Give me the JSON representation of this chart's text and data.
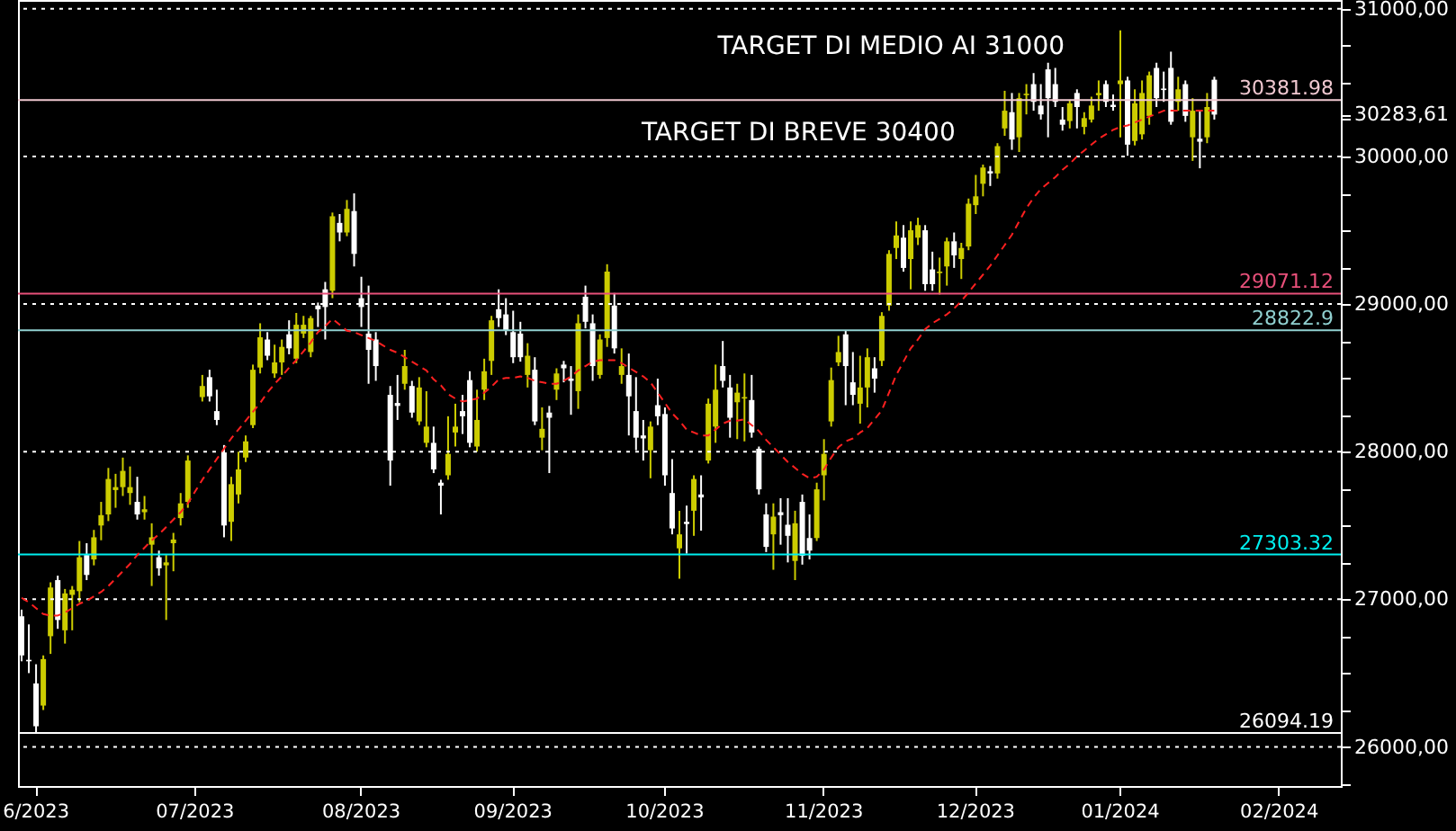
{
  "chart_data": {
    "type": "candlestick",
    "categories": [
      null,
      null,
      "6/2023",
      null,
      null,
      null,
      null,
      null,
      null,
      null,
      null,
      null,
      null,
      null,
      null,
      null,
      null,
      null,
      null,
      null,
      null,
      null,
      null,
      null,
      "07/2023",
      null,
      null,
      null,
      null,
      null,
      null,
      null,
      null,
      null,
      null,
      null,
      null,
      null,
      null,
      null,
      null,
      null,
      null,
      null,
      null,
      null,
      null,
      "08/2023",
      null,
      null,
      null,
      null,
      null,
      null,
      null,
      null,
      null,
      null,
      null,
      null,
      null,
      null,
      null,
      null,
      null,
      null,
      null,
      null,
      "09/2023",
      null,
      null,
      null,
      null,
      null,
      null,
      null,
      null,
      null,
      null,
      null,
      null,
      null,
      null,
      null,
      null,
      null,
      null,
      null,
      null,
      "10/2023",
      null,
      null,
      null,
      null,
      null,
      null,
      null,
      null,
      null,
      null,
      null,
      null,
      null,
      null,
      null,
      null,
      null,
      null,
      null,
      null,
      null,
      "11/2023",
      null,
      null,
      null,
      null,
      null,
      null,
      null,
      null,
      null,
      null,
      null,
      null,
      null,
      null,
      null,
      null,
      null,
      null,
      null,
      null,
      "12/2023",
      null,
      null,
      null,
      null,
      null,
      null,
      null,
      null,
      null,
      null,
      null,
      null,
      null,
      null,
      null,
      null,
      null,
      null,
      null,
      "01/2024",
      null,
      null,
      null,
      null,
      null,
      null,
      null,
      null,
      null,
      null,
      null,
      null,
      null,
      null,
      null,
      null,
      null,
      null,
      null,
      null,
      null,
      "02/2024",
      null,
      null,
      null,
      null,
      null,
      null,
      null,
      null
    ],
    "colors": [
      "#ffffff",
      "#ffffff",
      "#ffffff",
      "#cccc00",
      "#cccc00",
      "#ffffff",
      "#cccc00",
      "#cccc00",
      "#cccc00",
      "#ffffff",
      "#cccc00",
      "#cccc00",
      "#cccc00",
      "#cccc00",
      "#cccc00",
      "#cccc00",
      "#ffffff",
      "#cccc00",
      "#cccc00",
      "#ffffff",
      "#cccc00",
      "#cccc00",
      "#cccc00",
      "#cccc00",
      null,
      "#cccc00",
      "#ffffff",
      "#ffffff",
      "#ffffff",
      "#cccc00",
      "#cccc00",
      "#cccc00",
      "#cccc00",
      "#cccc00",
      "#ffffff",
      "#cccc00",
      "#cccc00",
      "#ffffff",
      "#cccc00",
      "#cccc00",
      "#cccc00",
      "#ffffff",
      "#ffffff",
      "#cccc00",
      "#ffffff",
      "#cccc00",
      "#ffffff",
      "#ffffff",
      "#ffffff",
      "#ffffff",
      null,
      "#ffffff",
      "#ffffff",
      "#cccc00",
      "#ffffff",
      "#cccc00",
      "#cccc00",
      "#ffffff",
      "#ffffff",
      "#cccc00",
      "#cccc00",
      "#ffffff",
      "#ffffff",
      "#cccc00",
      "#cccc00",
      "#cccc00",
      "#ffffff",
      "#ffffff",
      "#ffffff",
      "#ffffff",
      "#cccc00",
      "#ffffff",
      "#cccc00",
      "#ffffff",
      "#cccc00",
      "#ffffff",
      "#ffffff",
      "#cccc00",
      "#ffffff",
      "#ffffff",
      "#cccc00",
      "#cccc00",
      "#ffffff",
      "#cccc00",
      "#ffffff",
      "#ffffff",
      "#ffffff",
      "#cccc00",
      "#ffffff",
      "#ffffff",
      "#ffffff",
      "#cccc00",
      "#ffffff",
      "#cccc00",
      "#ffffff",
      "#cccc00",
      "#cccc00",
      "#ffffff",
      "#ffffff",
      "#cccc00",
      "#cccc00",
      "#ffffff",
      "#ffffff",
      "#ffffff",
      "#cccc00",
      "#ffffff",
      "#ffffff",
      "#cccc00",
      "#ffffff",
      "#ffffff",
      "#cccc00",
      "#cccc00",
      "#cccc00",
      "#cccc00",
      "#ffffff",
      "#ffffff",
      "#cccc00",
      "#cccc00",
      "#ffffff",
      "#cccc00",
      "#cccc00",
      "#cccc00",
      "#ffffff",
      "#cccc00",
      "#cccc00",
      "#ffffff",
      "#ffffff",
      "#cccc00",
      "#cccc00",
      "#ffffff",
      "#cccc00",
      "#cccc00",
      "#cccc00",
      "#cccc00",
      "#ffffff",
      "#cccc00",
      "#cccc00",
      "#ffffff",
      "#cccc00",
      "#cccc00",
      "#ffffff",
      "#ffffff",
      "#ffffff",
      "#ffffff",
      "#ffffff",
      "#cccc00",
      "#ffffff",
      "#cccc00",
      "#cccc00",
      "#cccc00",
      "#ffffff",
      "#ffffff",
      "#cccc00",
      "#ffffff",
      "#cccc00",
      "#cccc00",
      "#cccc00",
      "#ffffff",
      "#ffffff",
      "#ffffff",
      "#cccc00",
      "#ffffff",
      "#cccc00",
      "#ffffff",
      "#cccc00",
      "#ffffff",
      null,
      null,
      null,
      null,
      null,
      null,
      null,
      null,
      null,
      null,
      null,
      null,
      null,
      null,
      null,
      null,
      null
    ],
    "ohlc": [
      [
        26885,
        26930,
        26580,
        26620
      ],
      [
        26590,
        26830,
        26500,
        26580
      ],
      [
        26430,
        26560,
        26094.19,
        26140
      ],
      [
        26280,
        26620,
        26250,
        26595
      ],
      [
        26750,
        27115,
        26630,
        27080
      ],
      [
        27130,
        27160,
        26800,
        26860
      ],
      [
        26790,
        27070,
        26700,
        27040
      ],
      [
        27030,
        27090,
        26790,
        27065
      ],
      [
        27055,
        27395,
        26980,
        27285
      ],
      [
        27300,
        27380,
        27130,
        27165
      ],
      [
        27270,
        27470,
        27230,
        27420
      ],
      [
        27500,
        27660,
        27400,
        27570
      ],
      [
        27575,
        27890,
        27530,
        27815
      ],
      [
        27740,
        27850,
        27620,
        27760
      ],
      [
        27760,
        27960,
        27700,
        27870
      ],
      [
        27720,
        27900,
        27640,
        27760
      ],
      [
        27660,
        27830,
        27540,
        27575
      ],
      [
        27590,
        27700,
        27540,
        27610
      ],
      [
        27370,
        27515,
        27090,
        27420
      ],
      [
        27285,
        27330,
        27160,
        27210
      ],
      [
        27230,
        27300,
        26860,
        27250
      ],
      [
        27380,
        27450,
        27190,
        27405
      ],
      [
        27550,
        27720,
        27500,
        27650
      ],
      [
        27660,
        27975,
        27620,
        27940
      ],
      null,
      [
        28370,
        28520,
        28340,
        28445
      ],
      [
        28505,
        28555,
        28340,
        28375
      ],
      [
        28275,
        28420,
        28180,
        28215
      ],
      [
        27995,
        28045,
        27420,
        27500
      ],
      [
        27525,
        27830,
        27395,
        27780
      ],
      [
        27710,
        28000,
        27650,
        27880
      ],
      [
        27960,
        28110,
        27930,
        28070
      ],
      [
        28180,
        28590,
        28160,
        28555
      ],
      [
        28570,
        28870,
        28530,
        28775
      ],
      [
        28760,
        28810,
        28620,
        28650
      ],
      [
        28530,
        28725,
        28500,
        28605
      ],
      [
        28605,
        28760,
        28520,
        28710
      ],
      [
        28795,
        28890,
        28660,
        28700
      ],
      [
        28630,
        28940,
        28600,
        28860
      ],
      [
        28800,
        28920,
        28770,
        28860
      ],
      [
        28675,
        28920,
        28640,
        28905
      ],
      [
        28990,
        29010,
        28845,
        28965
      ],
      [
        29100,
        29150,
        28760,
        28980
      ],
      [
        29090,
        29620,
        29040,
        29595
      ],
      [
        29550,
        29610,
        29425,
        29485
      ],
      [
        29485,
        29705,
        29460,
        29645
      ],
      [
        29630,
        29750,
        29255,
        29340
      ],
      [
        29040,
        29185,
        28845,
        28980
      ],
      [
        28800,
        29125,
        28460,
        28690
      ],
      [
        28760,
        28810,
        28480,
        28580
      ],
      null,
      [
        28385,
        28445,
        27770,
        27940
      ],
      [
        28330,
        28520,
        28215,
        28310
      ],
      [
        28460,
        28690,
        28420,
        28580
      ],
      [
        28445,
        28480,
        28230,
        28265
      ],
      [
        28205,
        28505,
        28180,
        28435
      ],
      [
        28060,
        28410,
        28030,
        28170
      ],
      [
        28060,
        28170,
        27855,
        27880
      ],
      [
        27790,
        27810,
        27575,
        27770
      ],
      [
        27840,
        28240,
        27810,
        27985
      ],
      [
        28130,
        28325,
        28035,
        28170
      ],
      [
        28275,
        28385,
        28120,
        28240
      ],
      [
        28485,
        28545,
        28030,
        28060
      ],
      [
        28035,
        28420,
        28000,
        28215
      ],
      [
        28420,
        28630,
        28350,
        28545
      ],
      [
        28615,
        28920,
        28520,
        28890
      ],
      [
        28965,
        29100,
        28845,
        28905
      ],
      [
        28930,
        29040,
        28790,
        28820
      ],
      [
        28810,
        28955,
        28600,
        28640
      ],
      [
        28800,
        28880,
        28610,
        28640
      ],
      [
        28520,
        28735,
        28435,
        28650
      ],
      [
        28555,
        28640,
        28180,
        28205
      ],
      [
        28095,
        28300,
        28010,
        28155
      ],
      [
        28265,
        28310,
        27855,
        28230
      ],
      [
        28420,
        28565,
        28350,
        28530
      ],
      [
        28590,
        28615,
        28470,
        28565
      ],
      [
        28495,
        28580,
        28250,
        28480
      ],
      [
        28410,
        28930,
        28290,
        28870
      ],
      [
        29050,
        29125,
        28835,
        28880
      ],
      [
        28870,
        28930,
        28480,
        28580
      ],
      [
        28520,
        28795,
        28495,
        28760
      ],
      [
        28770,
        29270,
        28710,
        29220
      ],
      [
        28990,
        29075,
        28665,
        28700
      ],
      [
        28520,
        28700,
        28460,
        28580
      ],
      [
        28520,
        28665,
        28110,
        28375
      ],
      [
        28275,
        28505,
        28010,
        28095
      ],
      [
        28110,
        28215,
        27940,
        28090
      ],
      [
        28010,
        28205,
        27820,
        28170
      ],
      [
        28315,
        28495,
        28180,
        28240
      ],
      [
        28255,
        28300,
        27770,
        27840
      ],
      [
        27720,
        27950,
        27440,
        27480
      ],
      [
        27345,
        27600,
        27140,
        27440
      ],
      [
        27525,
        27635,
        27310,
        27510
      ],
      [
        27600,
        27840,
        27430,
        27815
      ],
      [
        27710,
        27840,
        27465,
        27690
      ],
      [
        27940,
        28360,
        27920,
        28325
      ],
      [
        28170,
        28590,
        28060,
        28420
      ],
      [
        28580,
        28750,
        28435,
        28480
      ],
      [
        28435,
        28520,
        28095,
        28230
      ],
      [
        28335,
        28460,
        28085,
        28400
      ],
      [
        28360,
        28530,
        28070,
        28370
      ],
      [
        28350,
        28520,
        28095,
        28130
      ],
      [
        28020,
        28035,
        27710,
        27745
      ],
      [
        27575,
        27650,
        27320,
        27355
      ],
      [
        27440,
        27650,
        27200,
        27560
      ],
      [
        27590,
        27685,
        27370,
        27570
      ],
      [
        27505,
        27685,
        27250,
        27430
      ],
      [
        27260,
        27600,
        27130,
        27515
      ],
      [
        27660,
        27710,
        27235,
        27295
      ],
      [
        27415,
        27575,
        27270,
        27330
      ],
      [
        27415,
        27790,
        27395,
        27745
      ],
      [
        27840,
        28085,
        27670,
        27985
      ],
      [
        28205,
        28570,
        28170,
        28485
      ],
      [
        28605,
        28785,
        28580,
        28675
      ],
      [
        28795,
        28820,
        28315,
        28580
      ],
      [
        28470,
        28675,
        28315,
        28385
      ],
      [
        28325,
        28650,
        28190,
        28435
      ],
      [
        28435,
        28700,
        28300,
        28640
      ],
      [
        28565,
        28640,
        28400,
        28495
      ],
      [
        28615,
        28945,
        28580,
        28920
      ],
      [
        28990,
        29365,
        28955,
        29340
      ],
      [
        29380,
        29560,
        29305,
        29465
      ],
      [
        29450,
        29535,
        29220,
        29245
      ],
      [
        29305,
        29560,
        29100,
        29500
      ],
      [
        29450,
        29585,
        29400,
        29535
      ],
      [
        29500,
        29535,
        29090,
        29135
      ],
      [
        29235,
        29355,
        29090,
        29135
      ],
      [
        29210,
        29315,
        29065,
        29220
      ],
      [
        29255,
        29450,
        29125,
        29425
      ],
      [
        29425,
        29485,
        29245,
        29330
      ],
      [
        29305,
        29415,
        29170,
        29380
      ],
      [
        29390,
        29715,
        29365,
        29680
      ],
      [
        29670,
        29875,
        29610,
        29730
      ],
      [
        29815,
        29945,
        29730,
        29925
      ],
      [
        29900,
        29935,
        29800,
        29885
      ],
      [
        29885,
        30090,
        29850,
        30070
      ],
      [
        30190,
        30445,
        30140,
        30310
      ],
      [
        30300,
        30430,
        30045,
        30115
      ],
      [
        30130,
        30430,
        30030,
        30395
      ],
      [
        30415,
        30490,
        30285,
        30425
      ],
      [
        30490,
        30565,
        30310,
        30370
      ],
      [
        30345,
        30490,
        30250,
        30285
      ],
      [
        30590,
        30635,
        30130,
        30395
      ],
      [
        30490,
        30600,
        30335,
        30370
      ],
      [
        30250,
        30335,
        30175,
        30215
      ],
      [
        30240,
        30385,
        30190,
        30360
      ],
      [
        30430,
        30455,
        30190,
        30335
      ],
      [
        30200,
        30300,
        30150,
        30260
      ],
      [
        30250,
        30405,
        30230,
        30345
      ],
      [
        30415,
        30515,
        30310,
        30430
      ],
      [
        30490,
        30515,
        30335,
        30370
      ],
      [
        30350,
        30420,
        30310,
        30335
      ],
      [
        30490,
        30855,
        30130,
        30515
      ],
      [
        30515,
        30540,
        30005,
        30080
      ],
      [
        30105,
        30455,
        30075,
        30360
      ],
      [
        30150,
        30515,
        30115,
        30430
      ],
      [
        30275,
        30575,
        30215,
        30550
      ],
      [
        30600,
        30635,
        30335,
        30395
      ],
      [
        30460,
        30575,
        30370,
        30450
      ],
      [
        30600,
        30710,
        30215,
        30235
      ],
      [
        30370,
        30540,
        30310,
        30455
      ],
      [
        30490,
        30515,
        30235,
        30275
      ],
      [
        30130,
        30395,
        29970,
        30310
      ],
      [
        30120,
        30310,
        29920,
        30100
      ],
      [
        30130,
        30430,
        30090,
        30335
      ],
      [
        30520,
        30540,
        30250,
        30283.61
      ],
      null,
      null,
      null,
      null,
      null,
      null,
      null,
      null,
      null,
      null,
      null,
      null,
      null,
      null,
      null,
      null,
      null
    ],
    "series": [
      {
        "type": "line",
        "color": "#ff2020",
        "line_style": "dashed",
        "values": [
          27010,
          26980,
          26940,
          26900,
          26890,
          26890,
          26910,
          26940,
          26970,
          26990,
          27020,
          27050,
          27090,
          27140,
          27190,
          27240,
          27300,
          27350,
          27400,
          27440,
          27490,
          27540,
          27590,
          27650,
          27730,
          27810,
          27880,
          27950,
          28020,
          28090,
          28150,
          28210,
          28270,
          28330,
          28400,
          28460,
          28510,
          28570,
          28620,
          28680,
          28740,
          28810,
          28850,
          28900,
          28860,
          28820,
          28810,
          28790,
          28770,
          28750,
          28720,
          28690,
          28670,
          28640,
          28610,
          28580,
          28550,
          28490,
          28450,
          28390,
          28360,
          28340,
          28350,
          28360,
          28400,
          28440,
          28490,
          28500,
          28500,
          28510,
          28500,
          28480,
          28470,
          28460,
          28460,
          28480,
          28510,
          28550,
          28580,
          28610,
          28620,
          28620,
          28620,
          28600,
          28570,
          28540,
          28510,
          28470,
          28400,
          28330,
          28260,
          28210,
          28150,
          28130,
          28110,
          28110,
          28150,
          28190,
          28210,
          28210,
          28220,
          28180,
          28140,
          28080,
          28030,
          27980,
          27930,
          27890,
          27850,
          27820,
          27830,
          27880,
          27960,
          28030,
          28070,
          28090,
          28130,
          28160,
          28220,
          28280,
          28400,
          28520,
          28610,
          28700,
          28760,
          28830,
          28870,
          28900,
          28930,
          28970,
          29020,
          29080,
          29140,
          29200,
          29260,
          29330,
          29400,
          29470,
          29560,
          29650,
          29720,
          29780,
          29820,
          29860,
          29910,
          29950,
          30000,
          30040,
          30080,
          30120,
          30150,
          30180,
          30200,
          30210,
          30230,
          30250,
          30270,
          30290,
          30310,
          30310,
          30310,
          30310,
          30310,
          30310,
          30310,
          30310,
          null,
          null,
          null,
          null,
          null,
          null,
          null,
          null,
          null,
          null,
          null,
          null,
          null,
          null,
          null,
          null,
          null
        ]
      }
    ],
    "ylim": [
      25735,
      31060
    ],
    "yticks": [
      {
        "value": 25750,
        "label": null
      },
      {
        "value": 26000,
        "label": "26000,00"
      },
      {
        "value": 26250,
        "label": null
      },
      {
        "value": 26500,
        "label": null
      },
      {
        "value": 26750,
        "label": null
      },
      {
        "value": 27000,
        "label": "27000,00"
      },
      {
        "value": 27250,
        "label": null
      },
      {
        "value": 27500,
        "label": null
      },
      {
        "value": 27750,
        "label": null
      },
      {
        "value": 28000,
        "label": "28000,00"
      },
      {
        "value": 28250,
        "label": null
      },
      {
        "value": 28500,
        "label": null
      },
      {
        "value": 28750,
        "label": null
      },
      {
        "value": 29000,
        "label": "29000,00"
      },
      {
        "value": 29250,
        "label": null
      },
      {
        "value": 29500,
        "label": null
      },
      {
        "value": 29750,
        "label": null
      },
      {
        "value": 30000,
        "label": "30000,00"
      },
      {
        "value": 30250,
        "label": null
      },
      {
        "value": 30283.61,
        "label": "30283,61"
      },
      {
        "value": 30500,
        "label": null
      },
      {
        "value": 30750,
        "label": null
      },
      {
        "value": 31000,
        "label": "31000,00"
      }
    ],
    "ref_lines": [
      {
        "axis": "y",
        "value": 26000,
        "label": null,
        "color": "#ffffff",
        "line_style": "dotted"
      },
      {
        "axis": "y",
        "value": 27000,
        "label": null,
        "color": "#ffffff",
        "line_style": "dotted"
      },
      {
        "axis": "y",
        "value": 28000,
        "label": null,
        "color": "#ffffff",
        "line_style": "dotted"
      },
      {
        "axis": "y",
        "value": 29000,
        "label": null,
        "color": "#ffffff",
        "line_style": "dotted"
      },
      {
        "axis": "y",
        "value": 30000,
        "label": null,
        "color": "#ffffff",
        "line_style": "dotted"
      },
      {
        "axis": "y",
        "value": 31000,
        "label": null,
        "color": "#ffffff",
        "line_style": "dotted"
      },
      {
        "axis": "y",
        "value": 30381.98,
        "label": "30381.98",
        "color": "#f0c8d0",
        "line_style": "solid"
      },
      {
        "axis": "y",
        "value": 29071.12,
        "label": "29071.12",
        "color": "#e8507a",
        "line_style": "solid"
      },
      {
        "axis": "y",
        "value": 28822.9,
        "label": "28822.9",
        "color": "#90d0d0",
        "line_style": "solid"
      },
      {
        "axis": "y",
        "value": 27303.32,
        "label": "27303.32",
        "color": "#00f0f0",
        "line_style": "solid"
      },
      {
        "axis": "y",
        "value": 26094.19,
        "label": "26094.19",
        "color": "#ffffff",
        "line_style": "solid"
      }
    ],
    "annotations": [
      "TARGET DI MEDIO AI 31000",
      "TARGET DI BREVE 30400"
    ]
  }
}
